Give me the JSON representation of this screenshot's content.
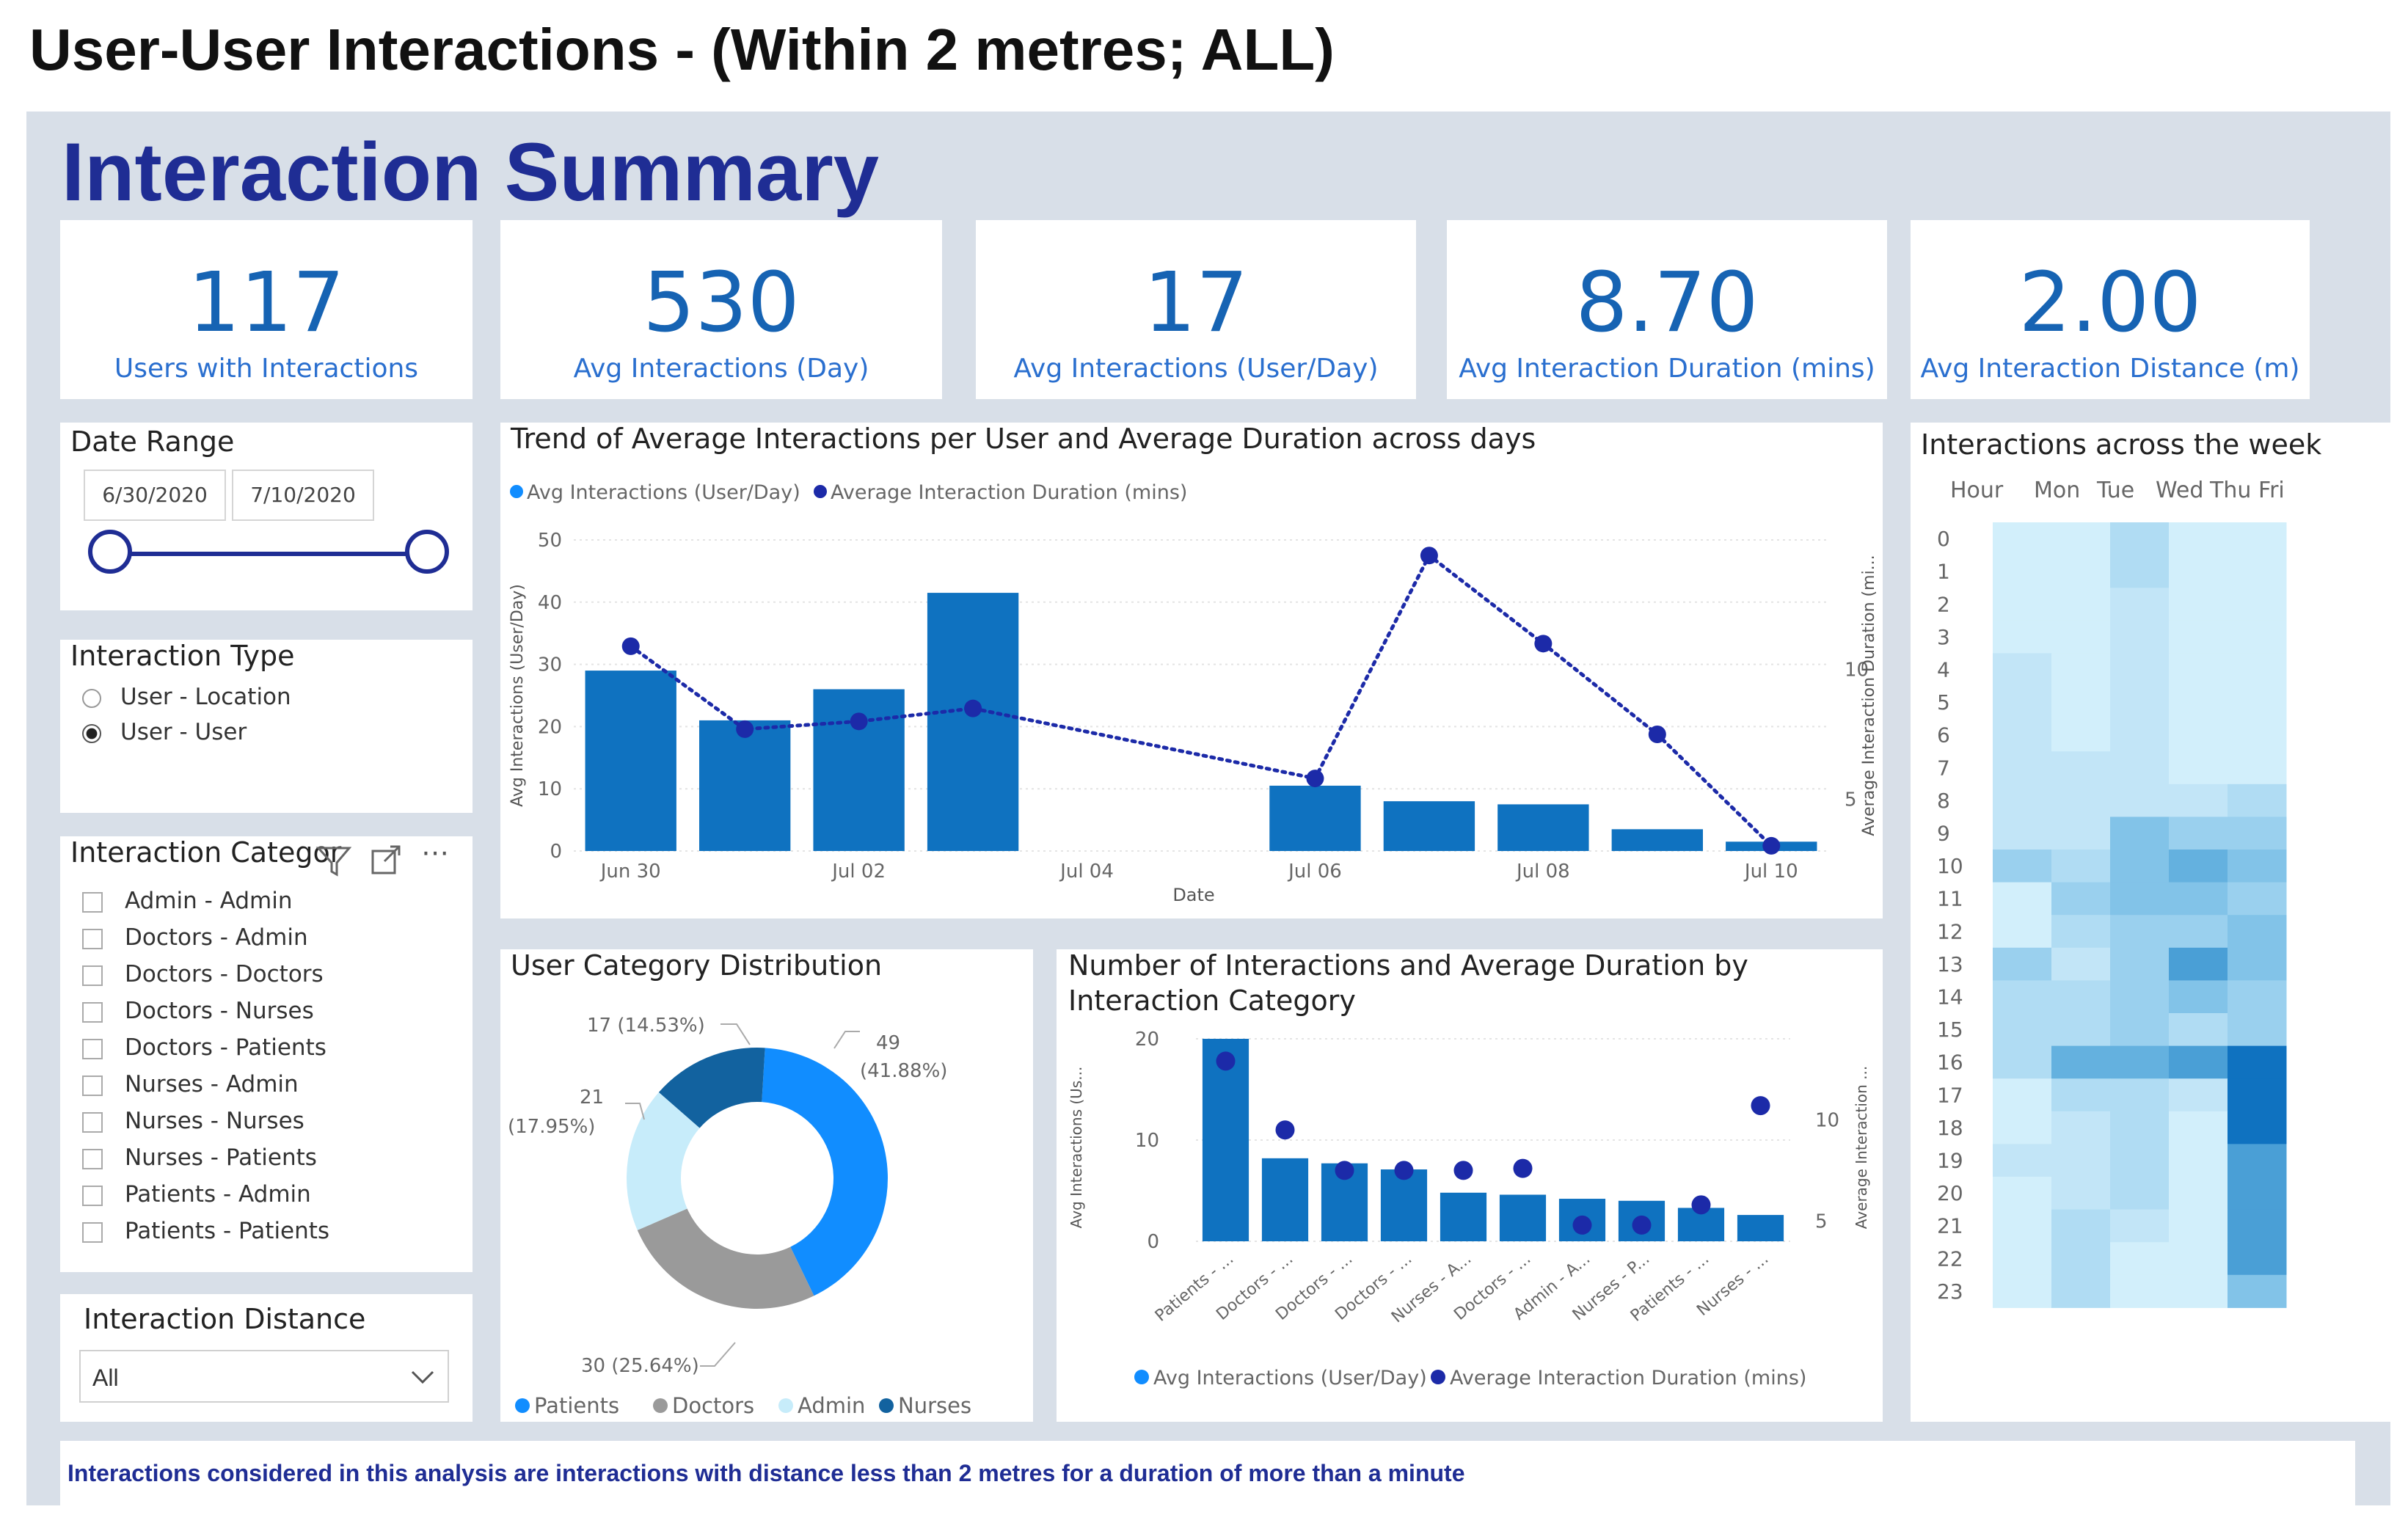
{
  "doc_title": "User-User Interactions - (Within 2 metres; ALL)",
  "report_title": "Interaction Summary",
  "kpis": [
    {
      "value": "117",
      "label": "Users with Interactions"
    },
    {
      "value": "530",
      "label": "Avg Interactions (Day)"
    },
    {
      "value": "17",
      "label": "Avg Interactions (User/Day)"
    },
    {
      "value": "8.70",
      "label": "Avg Interaction Duration (mins)"
    },
    {
      "value": "2.00",
      "label": "Avg Interaction Distance (m)"
    }
  ],
  "date_range": {
    "title": "Date Range",
    "start": "6/30/2020",
    "end": "7/10/2020"
  },
  "interaction_type": {
    "title": "Interaction Type",
    "options": [
      "User - Location",
      "User - User"
    ],
    "selected": "User - User"
  },
  "interaction_category": {
    "title": "Interaction Categor",
    "items": [
      "Admin - Admin",
      "Doctors - Admin",
      "Doctors - Doctors",
      "Doctors - Nurses",
      "Doctors - Patients",
      "Nurses - Admin",
      "Nurses - Nurses",
      "Nurses - Patients",
      "Patients - Admin",
      "Patients - Patients"
    ]
  },
  "interaction_distance": {
    "title": "Interaction Distance",
    "selected": "All"
  },
  "footer_note": "Interactions considered in this analysis are interactions with distance less than 2 metres for a duration of more than a minute",
  "colors": {
    "accent": "#1f2d94",
    "bar": "#0f72c0",
    "dot": "#1c2aa8",
    "kpi": "#1663b3"
  },
  "chart_data": [
    {
      "id": "trend",
      "type": "bar",
      "title": "Trend of Average Interactions per User and Average Duration across days",
      "legend": [
        "Avg Interactions (User/Day)",
        "Average Interaction Duration (mins)"
      ],
      "xlabel": "Date",
      "ylabel": "Avg Interactions (User/Day)",
      "y2label": "Average Interaction Duration (mi...",
      "x_ticks": [
        "Jun 30",
        "Jul 02",
        "Jul 04",
        "Jul 06",
        "Jul 08",
        "Jul 10"
      ],
      "y_ticks": [
        "0",
        "10",
        "20",
        "30",
        "40",
        "50"
      ],
      "y2_ticks": [
        "5",
        "10"
      ],
      "ylim": [
        0,
        50
      ],
      "y2lim": [
        3,
        15
      ],
      "series": [
        {
          "name": "Avg Interactions (User/Day)",
          "kind": "bar",
          "points": [
            {
              "day": 0,
              "v": 29
            },
            {
              "day": 1,
              "v": 21
            },
            {
              "day": 2,
              "v": 26
            },
            {
              "day": 3,
              "v": 41.5
            },
            {
              "day": 6,
              "v": 10.5
            },
            {
              "day": 7,
              "v": 8
            },
            {
              "day": 8,
              "v": 7.5
            },
            {
              "day": 9,
              "v": 3.5
            },
            {
              "day": 10,
              "v": 1.5
            }
          ]
        },
        {
          "name": "Average Interaction Duration (mins)",
          "kind": "line",
          "points": [
            {
              "day": 0,
              "v": 10.9
            },
            {
              "day": 1,
              "v": 7.7
            },
            {
              "day": 2,
              "v": 8.0
            },
            {
              "day": 3,
              "v": 8.5
            },
            {
              "day": 6,
              "v": 5.8
            },
            {
              "day": 7,
              "v": 14.4
            },
            {
              "day": 8,
              "v": 11.0
            },
            {
              "day": 9,
              "v": 7.5
            },
            {
              "day": 10,
              "v": 3.2
            }
          ]
        }
      ]
    },
    {
      "id": "donut",
      "type": "pie",
      "title": "User Category Distribution",
      "slices": [
        {
          "name": "Patients",
          "value": 49,
          "label": "49",
          "pct": "(41.88%)",
          "color": "#118dff"
        },
        {
          "name": "Doctors",
          "value": 30,
          "label": "30 (25.64%)",
          "pct": "",
          "color": "#9a9a9a"
        },
        {
          "name": "Admin",
          "value": 21,
          "label": "21",
          "pct": "(17.95%)",
          "color": "#c7ecfa"
        },
        {
          "name": "Nurses",
          "value": 17,
          "label": "17 (14.53%)",
          "pct": "",
          "color": "#12629f"
        }
      ],
      "legend": [
        "Patients",
        "Doctors",
        "Admin",
        "Nurses"
      ]
    },
    {
      "id": "category",
      "type": "bar",
      "title": "Number of Interactions and Average Duration by",
      "title2": "Interaction Category",
      "legend": [
        "Avg Interactions (User/Day)",
        "Average Interaction Duration (mins)"
      ],
      "ylabel": "Avg Interactions (Us...",
      "y2label": "Average Interaction ...",
      "categories": [
        "Patients - ...",
        "Doctors - ...",
        "Doctors - ...",
        "Doctors - ...",
        "Nurses - A...",
        "Doctors - ...",
        "Admin - A...",
        "Nurses - P...",
        "Patients - ...",
        "Nurses - ..."
      ],
      "y_ticks": [
        "0",
        "10",
        "20"
      ],
      "y2_ticks": [
        "5",
        "10"
      ],
      "ylim": [
        0,
        20
      ],
      "y2lim": [
        4,
        14
      ],
      "series": [
        {
          "name": "Avg Interactions (User/Day)",
          "values": [
            20,
            8.2,
            7.7,
            7.1,
            4.8,
            4.6,
            4.2,
            4.0,
            3.3,
            2.6
          ]
        },
        {
          "name": "Average Interaction Duration (mins)",
          "values": [
            12.9,
            9.5,
            7.5,
            7.5,
            7.5,
            7.6,
            4.8,
            4.8,
            5.8,
            10.7
          ]
        }
      ]
    },
    {
      "id": "heatmap",
      "type": "heatmap",
      "title": "Interactions across the week",
      "columns": [
        "Hour",
        "Mon",
        "Tue",
        "Wed",
        "Thu",
        "Fri"
      ],
      "rows": [
        "0",
        "1",
        "2",
        "3",
        "4",
        "5",
        "6",
        "7",
        "8",
        "9",
        "10",
        "11",
        "12",
        "13",
        "14",
        "15",
        "16",
        "17",
        "18",
        "19",
        "20",
        "21",
        "22",
        "23"
      ],
      "values": [
        [
          1,
          1,
          3,
          1,
          1
        ],
        [
          1,
          1,
          3,
          1,
          1
        ],
        [
          1,
          1,
          2,
          1,
          1
        ],
        [
          1,
          1,
          2,
          1,
          1
        ],
        [
          2,
          1,
          2,
          1,
          1
        ],
        [
          2,
          1,
          2,
          1,
          1
        ],
        [
          2,
          1,
          2,
          1,
          1
        ],
        [
          2,
          2,
          2,
          1,
          1
        ],
        [
          2,
          2,
          2,
          2,
          3
        ],
        [
          2,
          2,
          5,
          4,
          4
        ],
        [
          4,
          3,
          5,
          6,
          5
        ],
        [
          1,
          4,
          5,
          5,
          4
        ],
        [
          1,
          3,
          4,
          4,
          5
        ],
        [
          4,
          2,
          4,
          7,
          5
        ],
        [
          3,
          3,
          4,
          5,
          4
        ],
        [
          3,
          3,
          4,
          3,
          4
        ],
        [
          3,
          6,
          6,
          7,
          9
        ],
        [
          1,
          3,
          3,
          2,
          9
        ],
        [
          1,
          2,
          3,
          1,
          9
        ],
        [
          2,
          2,
          3,
          1,
          7
        ],
        [
          1,
          2,
          3,
          1,
          7
        ],
        [
          1,
          3,
          2,
          1,
          7
        ],
        [
          1,
          3,
          1,
          1,
          7
        ],
        [
          1,
          3,
          1,
          1,
          5
        ]
      ]
    }
  ]
}
